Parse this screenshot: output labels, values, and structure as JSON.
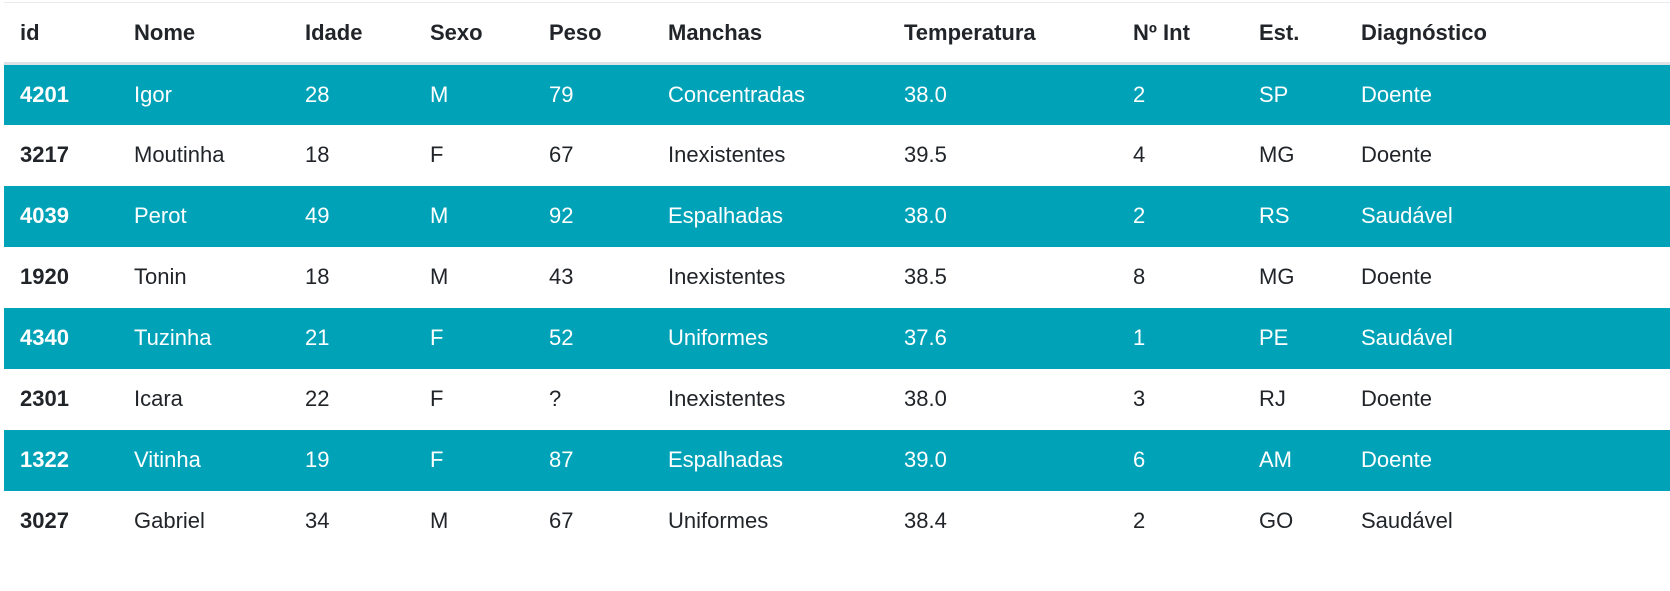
{
  "table": {
    "headers": [
      "id",
      "Nome",
      "Idade",
      "Sexo",
      "Peso",
      "Manchas",
      "Temperatura",
      "Nº Int",
      "Est.",
      "Diagnóstico"
    ],
    "rows": [
      [
        "4201",
        "Igor",
        "28",
        "M",
        "79",
        "Concentradas",
        "38.0",
        "2",
        "SP",
        "Doente"
      ],
      [
        "3217",
        "Moutinha",
        "18",
        "F",
        "67",
        "Inexistentes",
        "39.5",
        "4",
        "MG",
        "Doente"
      ],
      [
        "4039",
        "Perot",
        "49",
        "M",
        "92",
        "Espalhadas",
        "38.0",
        "2",
        "RS",
        "Saudável"
      ],
      [
        "1920",
        "Tonin",
        "18",
        "M",
        "43",
        "Inexistentes",
        "38.5",
        "8",
        "MG",
        "Doente"
      ],
      [
        "4340",
        "Tuzinha",
        "21",
        "F",
        "52",
        "Uniformes",
        "37.6",
        "1",
        "PE",
        "Saudável"
      ],
      [
        "2301",
        "Icara",
        "22",
        "F",
        "?",
        "Inexistentes",
        "38.0",
        "3",
        "RJ",
        "Doente"
      ],
      [
        "1322",
        "Vitinha",
        "19",
        "F",
        "87",
        "Espalhadas",
        "39.0",
        "6",
        "AM",
        "Doente"
      ],
      [
        "3027",
        "Gabriel",
        "34",
        "M",
        "67",
        "Uniformes",
        "38.4",
        "2",
        "GO",
        "Saudável"
      ]
    ]
  },
  "colors": {
    "stripe": "#00a2b8",
    "stripe_text": "#ffffff",
    "text": "#212529"
  }
}
